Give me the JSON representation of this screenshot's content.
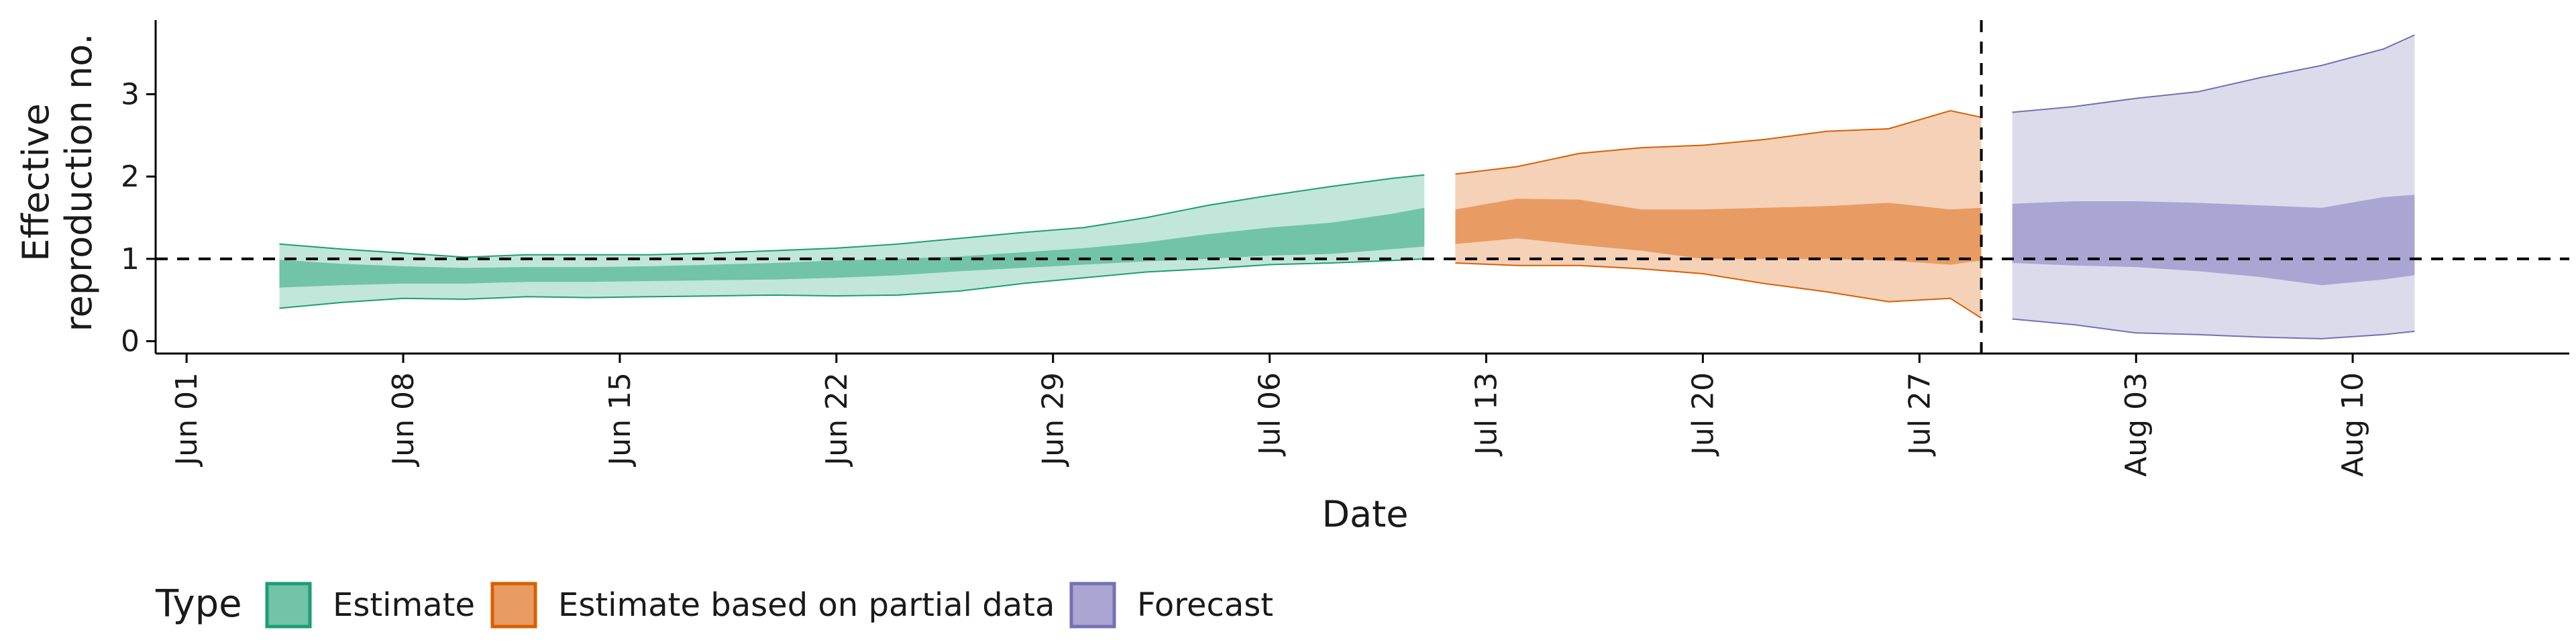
{
  "chart_data": {
    "type": "area",
    "title": "",
    "xlabel": "Date",
    "ylabel_lines": [
      "Effective",
      "reproduction no."
    ],
    "x_ticks": [
      "Jun 01",
      "Jun 08",
      "Jun 15",
      "Jun 22",
      "Jun 29",
      "Jul 06",
      "Jul 13",
      "Jul 20",
      "Jul 27",
      "Aug 03",
      "Aug 10"
    ],
    "y_ticks": [
      "0",
      "1",
      "2",
      "3"
    ],
    "xlim": [
      "2020-05-31",
      "2020-08-17"
    ],
    "ylim": [
      -0.15,
      3.9
    ],
    "reference_line_y": 1,
    "vertical_line_date": "2020-07-29",
    "grid": false,
    "legend": {
      "title": "Type",
      "position": "bottom-left",
      "entries": [
        "Estimate",
        "Estimate based on partial data",
        "Forecast"
      ]
    },
    "series": [
      {
        "name": "Estimate",
        "color": "#1b9e77",
        "fill_outer": "#c2e6da",
        "fill_inner": "#71c4a7",
        "dates": [
          "2020-06-04",
          "2020-06-06",
          "2020-06-08",
          "2020-06-10",
          "2020-06-12",
          "2020-06-14",
          "2020-06-16",
          "2020-06-18",
          "2020-06-20",
          "2020-06-22",
          "2020-06-24",
          "2020-06-26",
          "2020-06-28",
          "2020-06-30",
          "2020-07-02",
          "2020-07-04",
          "2020-07-06",
          "2020-07-08",
          "2020-07-10",
          "2020-07-11"
        ],
        "outer_low": [
          0.4,
          0.47,
          0.52,
          0.51,
          0.54,
          0.53,
          0.54,
          0.55,
          0.56,
          0.55,
          0.56,
          0.61,
          0.7,
          0.77,
          0.84,
          0.88,
          0.93,
          0.95,
          0.98,
          1.0
        ],
        "outer_high": [
          1.18,
          1.12,
          1.07,
          1.02,
          1.05,
          1.05,
          1.05,
          1.07,
          1.1,
          1.13,
          1.18,
          1.25,
          1.32,
          1.38,
          1.5,
          1.65,
          1.77,
          1.88,
          1.98,
          2.02
        ],
        "inner_low": [
          0.65,
          0.68,
          0.7,
          0.7,
          0.72,
          0.72,
          0.73,
          0.74,
          0.75,
          0.77,
          0.8,
          0.85,
          0.89,
          0.93,
          0.97,
          1.0,
          1.04,
          1.06,
          1.12,
          1.15
        ],
        "inner_high": [
          0.99,
          0.94,
          0.91,
          0.89,
          0.9,
          0.9,
          0.91,
          0.93,
          0.95,
          0.98,
          1.0,
          1.03,
          1.08,
          1.13,
          1.2,
          1.3,
          1.38,
          1.44,
          1.55,
          1.62
        ]
      },
      {
        "name": "Estimate based on partial data",
        "color": "#d95f02",
        "fill_outer": "#f5d1b7",
        "fill_inner": "#e89b63",
        "dates": [
          "2020-07-12",
          "2020-07-14",
          "2020-07-16",
          "2020-07-18",
          "2020-07-20",
          "2020-07-22",
          "2020-07-24",
          "2020-07-26",
          "2020-07-28",
          "2020-07-29"
        ],
        "outer_low": [
          0.95,
          0.92,
          0.92,
          0.88,
          0.82,
          0.7,
          0.6,
          0.48,
          0.52,
          0.28
        ],
        "outer_high": [
          2.03,
          2.12,
          2.28,
          2.35,
          2.38,
          2.45,
          2.55,
          2.58,
          2.8,
          2.72
        ],
        "inner_low": [
          1.18,
          1.25,
          1.17,
          1.1,
          1.0,
          1.0,
          1.0,
          0.98,
          0.93,
          0.98
        ],
        "inner_high": [
          1.6,
          1.73,
          1.72,
          1.6,
          1.6,
          1.62,
          1.64,
          1.68,
          1.6,
          1.62
        ]
      },
      {
        "name": "Forecast",
        "color": "#7570b3",
        "fill_outer": "#dcdbec",
        "fill_inner": "#aaa6d3",
        "dates": [
          "2020-07-30",
          "2020-08-01",
          "2020-08-03",
          "2020-08-05",
          "2020-08-07",
          "2020-08-09",
          "2020-08-11",
          "2020-08-12"
        ],
        "outer_low": [
          0.27,
          0.2,
          0.1,
          0.08,
          0.05,
          0.03,
          0.08,
          0.12
        ],
        "outer_high": [
          2.78,
          2.85,
          2.95,
          3.03,
          3.2,
          3.35,
          3.55,
          3.72
        ],
        "inner_low": [
          0.95,
          0.92,
          0.9,
          0.85,
          0.78,
          0.68,
          0.75,
          0.8
        ],
        "inner_high": [
          1.67,
          1.7,
          1.7,
          1.68,
          1.65,
          1.62,
          1.75,
          1.78
        ]
      }
    ]
  }
}
